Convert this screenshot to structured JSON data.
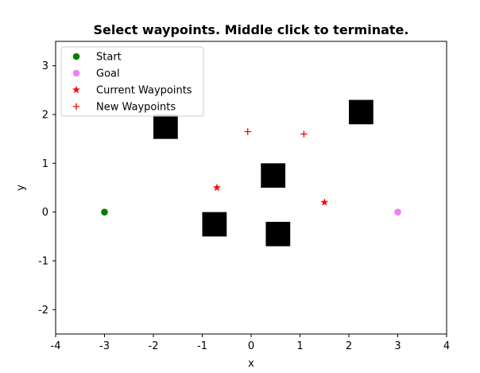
{
  "chart_data": {
    "type": "scatter",
    "title": "Select waypoints. Middle click to terminate.",
    "xlabel": "x",
    "ylabel": "y",
    "xlim": [
      -4,
      4
    ],
    "ylim": [
      -2.5,
      3.5
    ],
    "xticks": [
      "-4",
      "-3",
      "-2",
      "-1",
      "0",
      "1",
      "2",
      "3",
      "4"
    ],
    "yticks": [
      "-2",
      "-1",
      "0",
      "1",
      "2",
      "3"
    ],
    "grid": false,
    "legend_position": "top-left",
    "series": [
      {
        "name": "Start",
        "marker": "circle",
        "color": "#008000",
        "points": [
          [
            -3,
            0
          ]
        ]
      },
      {
        "name": "Goal",
        "marker": "circle",
        "color": "#ee82ee",
        "points": [
          [
            3,
            0
          ]
        ]
      },
      {
        "name": "Current Waypoints",
        "marker": "star",
        "color": "#ff0000",
        "points": [
          [
            -0.7,
            0.5
          ],
          [
            1.5,
            0.2
          ]
        ]
      },
      {
        "name": "New Waypoints",
        "marker": "plus",
        "color": "#ff0000",
        "points": [
          [
            -0.07,
            1.65
          ],
          [
            1.08,
            1.6
          ]
        ]
      }
    ],
    "obstacles": {
      "marker": "square",
      "color": "#000000",
      "centers": [
        [
          -1.75,
          1.75
        ],
        [
          2.25,
          2.05
        ],
        [
          0.45,
          0.75
        ],
        [
          -0.75,
          -0.25
        ],
        [
          0.55,
          -0.45
        ]
      ]
    }
  }
}
